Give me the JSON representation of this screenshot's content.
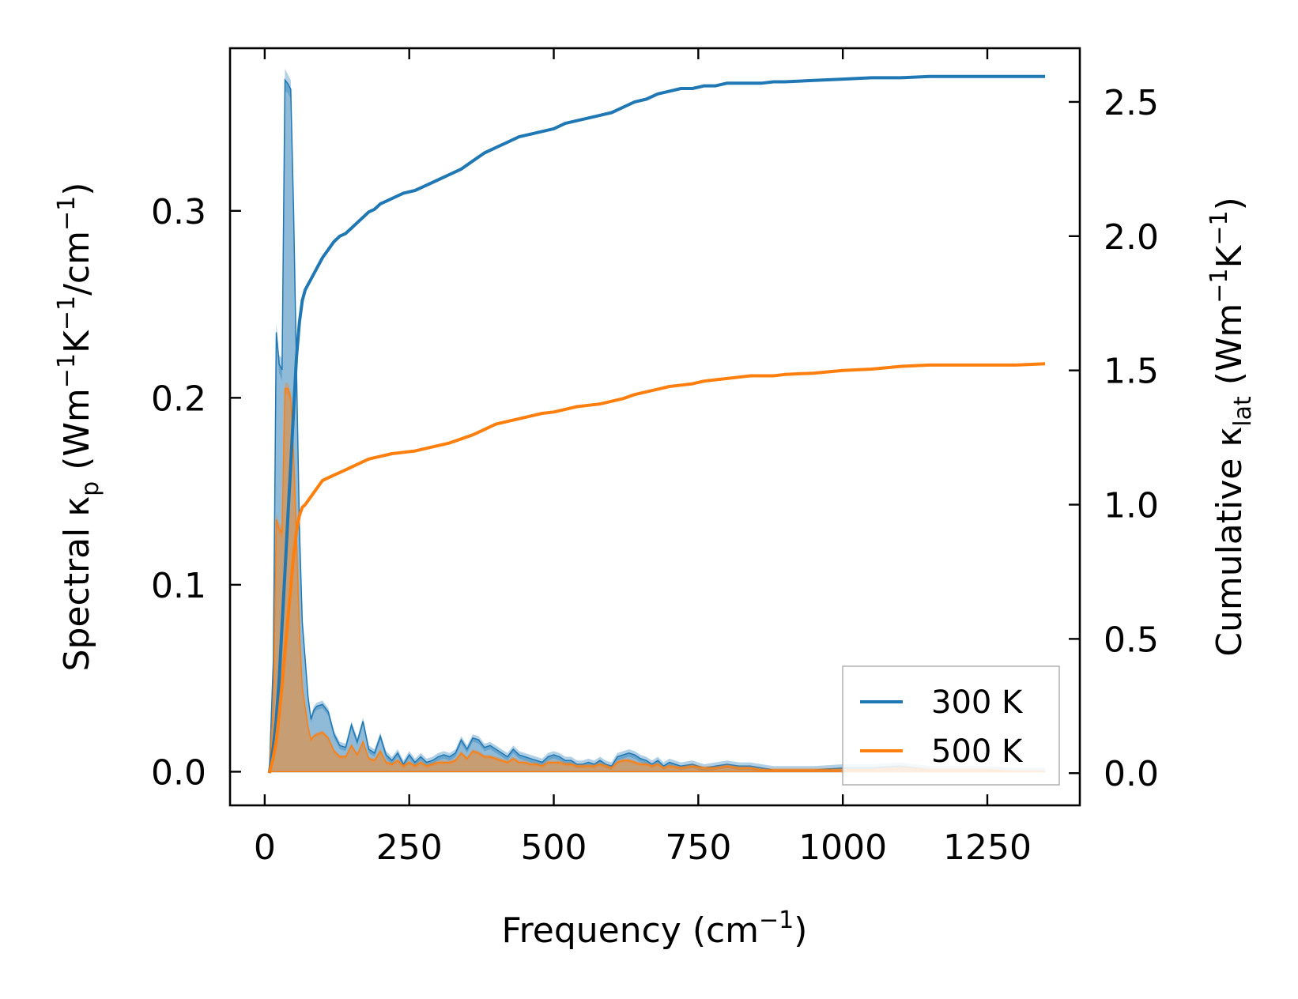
{
  "chart_data": {
    "type": "line",
    "title": "",
    "xlabel": {
      "main": "Frequency (cm",
      "sup": "−1",
      "tail": ")"
    },
    "ylabel_left": {
      "pre": "Spectral κ",
      "sub": "p",
      "mid1": " (Wm",
      "sup1": "−1",
      "mid2": "K",
      "sup2": "−1",
      "mid3": "/cm",
      "sup3": "−1",
      "tail": ")"
    },
    "ylabel_right": {
      "pre": "Cumulative κ",
      "sub": "lat",
      "mid1": " (Wm",
      "sup1": "−1",
      "mid2": "K",
      "sup2": "−1",
      "tail": ")"
    },
    "xlim": [
      -60,
      1410
    ],
    "ylim_left": [
      -0.018,
      0.387
    ],
    "ylim_right": [
      -0.12,
      2.7
    ],
    "xticks": [
      0,
      250,
      500,
      750,
      1000,
      1250
    ],
    "xtick_labels": [
      "0",
      "250",
      "500",
      "750",
      "1000",
      "1250"
    ],
    "yticks_left": [
      0.0,
      0.1,
      0.2,
      0.3
    ],
    "ytick_left_labels": [
      "0.0",
      "0.1",
      "0.2",
      "0.3"
    ],
    "yticks_right": [
      0.0,
      0.5,
      1.0,
      1.5,
      2.0,
      2.5
    ],
    "ytick_right_labels": [
      "0.0",
      "0.5",
      "1.0",
      "1.5",
      "2.0",
      "2.5"
    ],
    "legend_position": "lower-right",
    "series": [
      {
        "name": "300 K",
        "color": "#1f77b4",
        "spectral": {
          "x": [
            8,
            15,
            20,
            25,
            30,
            35,
            40,
            45,
            50,
            55,
            60,
            65,
            70,
            75,
            80,
            85,
            90,
            100,
            110,
            120,
            130,
            140,
            150,
            160,
            170,
            180,
            190,
            200,
            210,
            220,
            230,
            240,
            250,
            260,
            270,
            280,
            290,
            300,
            310,
            320,
            330,
            340,
            350,
            360,
            370,
            380,
            390,
            400,
            410,
            420,
            430,
            440,
            450,
            460,
            470,
            480,
            490,
            500,
            510,
            520,
            530,
            540,
            550,
            560,
            570,
            580,
            590,
            600,
            610,
            620,
            630,
            640,
            650,
            660,
            670,
            680,
            690,
            700,
            720,
            740,
            760,
            780,
            800,
            820,
            840,
            860,
            880,
            900,
            950,
            1000,
            1050,
            1100,
            1150,
            1200,
            1250,
            1300,
            1350
          ],
          "y": [
            0.0,
            0.06,
            0.235,
            0.218,
            0.215,
            0.37,
            0.368,
            0.365,
            0.3,
            0.215,
            0.13,
            0.08,
            0.06,
            0.04,
            0.028,
            0.033,
            0.035,
            0.036,
            0.032,
            0.02,
            0.014,
            0.013,
            0.025,
            0.016,
            0.027,
            0.012,
            0.01,
            0.019,
            0.009,
            0.006,
            0.01,
            0.004,
            0.009,
            0.005,
            0.008,
            0.005,
            0.006,
            0.008,
            0.009,
            0.008,
            0.01,
            0.017,
            0.012,
            0.018,
            0.017,
            0.013,
            0.014,
            0.012,
            0.01,
            0.008,
            0.012,
            0.009,
            0.008,
            0.007,
            0.006,
            0.005,
            0.008,
            0.009,
            0.008,
            0.006,
            0.006,
            0.004,
            0.004,
            0.005,
            0.004,
            0.006,
            0.004,
            0.003,
            0.008,
            0.009,
            0.01,
            0.009,
            0.007,
            0.006,
            0.004,
            0.006,
            0.003,
            0.005,
            0.003,
            0.004,
            0.002,
            0.003,
            0.004,
            0.003,
            0.003,
            0.002,
            0.001,
            0.001,
            0.001,
            0.002,
            0.002,
            0.003,
            0.001,
            0.001,
            0.001,
            0.0,
            0.0
          ],
          "band": [
            0.004,
            0.004,
            0.005,
            0.005,
            0.006,
            0.006,
            0.005,
            0.005,
            0.006,
            0.006,
            0.005,
            0.004,
            0.003,
            0.002,
            0.002,
            0.002,
            0.002,
            0.002,
            0.002,
            0.002,
            0.002,
            0.002,
            0.002,
            0.002,
            0.002,
            0.002,
            0.002,
            0.002,
            0.002,
            0.002,
            0.002,
            0.002,
            0.002,
            0.002,
            0.002,
            0.002,
            0.002,
            0.002,
            0.002,
            0.002,
            0.002,
            0.002,
            0.002,
            0.002,
            0.002,
            0.002,
            0.002,
            0.002,
            0.002,
            0.002,
            0.002,
            0.002,
            0.002,
            0.002,
            0.002,
            0.002,
            0.002,
            0.002,
            0.002,
            0.002,
            0.002,
            0.002,
            0.002,
            0.002,
            0.002,
            0.002,
            0.002,
            0.002,
            0.002,
            0.002,
            0.002,
            0.002,
            0.002,
            0.002,
            0.002,
            0.002,
            0.002,
            0.002,
            0.002,
            0.002,
            0.002,
            0.002,
            0.002,
            0.002,
            0.002,
            0.002,
            0.002,
            0.002,
            0.002,
            0.002,
            0.002,
            0.002,
            0.002,
            0.002,
            0.002,
            0.002,
            0.002
          ]
        },
        "cumulative": {
          "x": [
            8,
            15,
            20,
            25,
            30,
            35,
            40,
            45,
            50,
            55,
            60,
            65,
            70,
            80,
            90,
            100,
            110,
            120,
            130,
            140,
            150,
            160,
            170,
            180,
            190,
            200,
            220,
            240,
            260,
            280,
            300,
            320,
            340,
            360,
            380,
            400,
            420,
            440,
            460,
            480,
            500,
            520,
            540,
            560,
            580,
            600,
            620,
            640,
            660,
            680,
            700,
            720,
            740,
            760,
            780,
            800,
            820,
            840,
            860,
            880,
            900,
            950,
            1000,
            1050,
            1100,
            1150,
            1200,
            1250,
            1300,
            1350
          ],
          "y": [
            0.0,
            0.1,
            0.2,
            0.35,
            0.55,
            0.75,
            0.95,
            1.15,
            1.35,
            1.55,
            1.68,
            1.76,
            1.8,
            1.84,
            1.88,
            1.92,
            1.95,
            1.98,
            2.0,
            2.01,
            2.03,
            2.05,
            2.07,
            2.09,
            2.1,
            2.12,
            2.14,
            2.16,
            2.17,
            2.19,
            2.21,
            2.23,
            2.25,
            2.28,
            2.31,
            2.33,
            2.35,
            2.37,
            2.38,
            2.39,
            2.4,
            2.42,
            2.43,
            2.44,
            2.45,
            2.46,
            2.48,
            2.5,
            2.51,
            2.53,
            2.54,
            2.55,
            2.55,
            2.56,
            2.56,
            2.57,
            2.57,
            2.57,
            2.57,
            2.575,
            2.575,
            2.58,
            2.585,
            2.59,
            2.59,
            2.595,
            2.595,
            2.595,
            2.595,
            2.595
          ]
        }
      },
      {
        "name": "500 K",
        "color": "#ff7f0e",
        "spectral": {
          "x": [
            8,
            15,
            20,
            25,
            30,
            35,
            40,
            45,
            50,
            55,
            60,
            65,
            70,
            75,
            80,
            85,
            90,
            100,
            110,
            120,
            130,
            140,
            150,
            160,
            170,
            180,
            190,
            200,
            210,
            220,
            230,
            240,
            250,
            260,
            270,
            280,
            290,
            300,
            310,
            320,
            330,
            340,
            350,
            360,
            370,
            380,
            390,
            400,
            410,
            420,
            430,
            440,
            450,
            460,
            470,
            480,
            490,
            500,
            510,
            520,
            530,
            540,
            550,
            560,
            570,
            580,
            590,
            600,
            610,
            620,
            630,
            640,
            650,
            660,
            670,
            680,
            690,
            700,
            720,
            740,
            760,
            780,
            800,
            820,
            840,
            860,
            880,
            900,
            950,
            1000,
            1050,
            1100,
            1150,
            1200,
            1250,
            1300,
            1350
          ],
          "y": [
            0.0,
            0.035,
            0.135,
            0.13,
            0.128,
            0.205,
            0.205,
            0.2,
            0.17,
            0.125,
            0.075,
            0.045,
            0.034,
            0.024,
            0.017,
            0.019,
            0.02,
            0.021,
            0.018,
            0.011,
            0.008,
            0.008,
            0.014,
            0.009,
            0.016,
            0.007,
            0.006,
            0.011,
            0.005,
            0.004,
            0.006,
            0.003,
            0.005,
            0.003,
            0.005,
            0.003,
            0.004,
            0.005,
            0.005,
            0.005,
            0.006,
            0.01,
            0.007,
            0.011,
            0.01,
            0.008,
            0.008,
            0.007,
            0.006,
            0.005,
            0.007,
            0.005,
            0.005,
            0.004,
            0.004,
            0.003,
            0.005,
            0.005,
            0.005,
            0.004,
            0.004,
            0.003,
            0.003,
            0.003,
            0.003,
            0.004,
            0.003,
            0.002,
            0.005,
            0.006,
            0.006,
            0.005,
            0.004,
            0.004,
            0.003,
            0.004,
            0.002,
            0.003,
            0.002,
            0.003,
            0.002,
            0.002,
            0.003,
            0.002,
            0.002,
            0.001,
            0.001,
            0.001,
            0.001,
            0.001,
            0.001,
            0.002,
            0.001,
            0.001,
            0.001,
            0.0,
            0.0
          ],
          "band": [
            0.002,
            0.002,
            0.003,
            0.003,
            0.003,
            0.003,
            0.003,
            0.003,
            0.003,
            0.003,
            0.003,
            0.002,
            0.002,
            0.001,
            0.001,
            0.001,
            0.001,
            0.001,
            0.001,
            0.001,
            0.001,
            0.001,
            0.001,
            0.001,
            0.001,
            0.001,
            0.001,
            0.001,
            0.001,
            0.001,
            0.001,
            0.001,
            0.001,
            0.001,
            0.001,
            0.001,
            0.001,
            0.001,
            0.001,
            0.001,
            0.001,
            0.001,
            0.001,
            0.001,
            0.001,
            0.001,
            0.001,
            0.001,
            0.001,
            0.001,
            0.001,
            0.001,
            0.001,
            0.001,
            0.001,
            0.001,
            0.001,
            0.001,
            0.001,
            0.001,
            0.001,
            0.001,
            0.001,
            0.001,
            0.001,
            0.001,
            0.001,
            0.001,
            0.001,
            0.001,
            0.001,
            0.001,
            0.001,
            0.001,
            0.001,
            0.001,
            0.001,
            0.001,
            0.001,
            0.001,
            0.001,
            0.001,
            0.001,
            0.001,
            0.001,
            0.001,
            0.001,
            0.001,
            0.001,
            0.001,
            0.001,
            0.001,
            0.001,
            0.001,
            0.001,
            0.001,
            0.001
          ]
        },
        "cumulative": {
          "x": [
            8,
            15,
            20,
            25,
            30,
            35,
            40,
            45,
            50,
            55,
            60,
            65,
            70,
            80,
            90,
            100,
            110,
            120,
            130,
            140,
            150,
            160,
            170,
            180,
            190,
            200,
            220,
            240,
            260,
            280,
            300,
            320,
            340,
            360,
            380,
            400,
            420,
            440,
            460,
            480,
            500,
            520,
            540,
            560,
            580,
            600,
            620,
            640,
            660,
            680,
            700,
            720,
            740,
            760,
            780,
            800,
            820,
            840,
            860,
            880,
            900,
            950,
            1000,
            1050,
            1100,
            1150,
            1200,
            1250,
            1300,
            1350
          ],
          "y": [
            0.0,
            0.06,
            0.12,
            0.22,
            0.33,
            0.45,
            0.57,
            0.69,
            0.81,
            0.9,
            0.96,
            0.99,
            1.0,
            1.03,
            1.06,
            1.09,
            1.1,
            1.11,
            1.12,
            1.13,
            1.14,
            1.15,
            1.16,
            1.17,
            1.175,
            1.18,
            1.19,
            1.195,
            1.2,
            1.21,
            1.22,
            1.23,
            1.245,
            1.26,
            1.28,
            1.3,
            1.31,
            1.32,
            1.33,
            1.34,
            1.345,
            1.355,
            1.365,
            1.37,
            1.375,
            1.385,
            1.395,
            1.41,
            1.42,
            1.43,
            1.44,
            1.445,
            1.45,
            1.46,
            1.465,
            1.47,
            1.475,
            1.48,
            1.48,
            1.48,
            1.485,
            1.49,
            1.5,
            1.505,
            1.515,
            1.52,
            1.52,
            1.52,
            1.52,
            1.525
          ]
        }
      }
    ]
  }
}
